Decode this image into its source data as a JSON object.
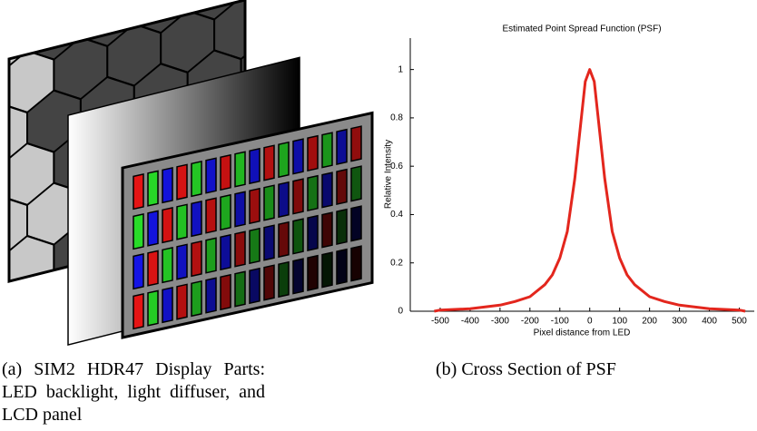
{
  "caption_a": "(a) SIM2 HDR47 Display Parts: LED backlight, light diffuser, and LCD panel",
  "caption_b": "(b) Cross Section of PSF",
  "chart_data": {
    "type": "line",
    "title": "Estimated Point Spread Function (PSF)",
    "x_label": "Pixel distance from LED",
    "y_label": "Relative Intensity",
    "x": [
      -520,
      -500,
      -400,
      -300,
      -250,
      -200,
      -150,
      -125,
      -100,
      -75,
      -50,
      -30,
      -15,
      0,
      15,
      30,
      50,
      75,
      100,
      125,
      150,
      200,
      250,
      300,
      400,
      500,
      520
    ],
    "series": [
      {
        "name": "PSF",
        "color": "#e3261d",
        "values": [
          0,
          0.005,
          0.01,
          0.025,
          0.04,
          0.06,
          0.11,
          0.15,
          0.22,
          0.33,
          0.55,
          0.78,
          0.95,
          1.0,
          0.95,
          0.78,
          0.55,
          0.33,
          0.22,
          0.15,
          0.11,
          0.06,
          0.04,
          0.025,
          0.01,
          0.005,
          0
        ]
      }
    ],
    "xlim": [
      -600,
      550
    ],
    "ylim": [
      0,
      1.13
    ],
    "xticks": [
      -500,
      -400,
      -300,
      -200,
      -100,
      0,
      100,
      200,
      300,
      400,
      500
    ],
    "yticks": [
      0,
      0.2,
      0.4,
      0.6,
      0.8,
      1
    ]
  }
}
